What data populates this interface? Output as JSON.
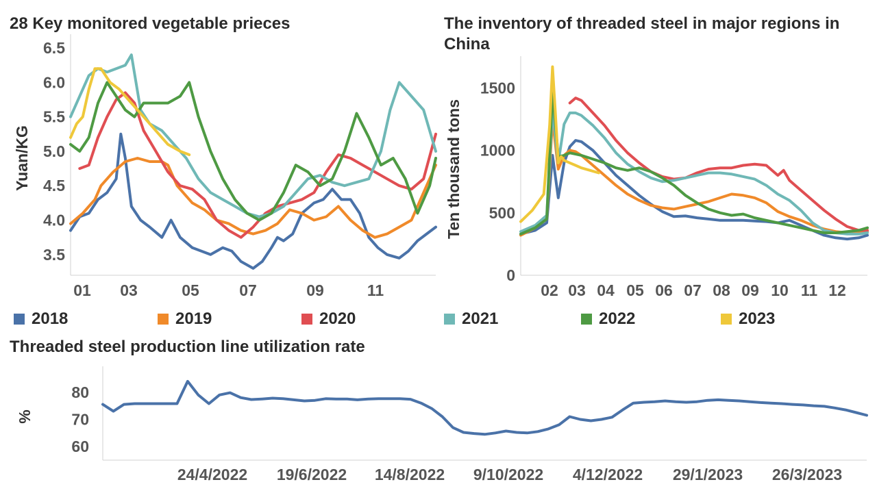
{
  "colors": {
    "2018": "#4a72a8",
    "2019": "#f08a2a",
    "2020": "#e04e52",
    "2021": "#6fb8b6",
    "2022": "#4e9a43",
    "2023": "#efc83a",
    "axis": "#d0d0d0"
  },
  "legend": {
    "items": [
      {
        "label": "2018",
        "color": "#4a72a8"
      },
      {
        "label": "2019",
        "color": "#f08a2a"
      },
      {
        "label": "2020",
        "color": "#e04e52"
      },
      {
        "label": "2021",
        "color": "#6fb8b6"
      },
      {
        "label": "2022",
        "color": "#4e9a43"
      },
      {
        "label": "2023",
        "color": "#efc83a"
      }
    ]
  },
  "chart_data": [
    {
      "type": "line",
      "title": "28 Key monitored vegetable prieces",
      "ylabel": "Yuan/KG",
      "xlabel": "",
      "ylim": [
        3.2,
        6.6
      ],
      "yticks": [
        "3.5",
        "4.0",
        "4.5",
        "5.0",
        "5.5",
        "6.0",
        "6.5"
      ],
      "xticks": [
        "01",
        "03",
        "05",
        "07",
        "09",
        "11"
      ],
      "xlim": [
        0,
        12
      ],
      "series": [
        {
          "name": "2018",
          "x": [
            0,
            0.3,
            0.6,
            0.9,
            1.2,
            1.5,
            1.65,
            1.8,
            2.0,
            2.3,
            2.6,
            3.0,
            3.3,
            3.6,
            4.0,
            4.3,
            4.6,
            5.0,
            5.3,
            5.6,
            6.0,
            6.3,
            6.6,
            6.8,
            7.0,
            7.3,
            7.6,
            8.0,
            8.3,
            8.6,
            8.9,
            9.2,
            9.5,
            9.8,
            10.1,
            10.4,
            10.8,
            11.1,
            11.4,
            11.7,
            12.0
          ],
          "y": [
            3.85,
            4.05,
            4.1,
            4.3,
            4.4,
            4.6,
            5.25,
            4.9,
            4.2,
            4.0,
            3.9,
            3.75,
            4.0,
            3.75,
            3.6,
            3.55,
            3.5,
            3.6,
            3.55,
            3.4,
            3.3,
            3.4,
            3.6,
            3.75,
            3.7,
            3.8,
            4.1,
            4.25,
            4.3,
            4.45,
            4.3,
            4.3,
            4.1,
            3.75,
            3.6,
            3.5,
            3.45,
            3.55,
            3.7,
            3.8,
            3.9
          ]
        },
        {
          "name": "2019",
          "x": [
            0,
            0.4,
            0.8,
            1.0,
            1.4,
            1.8,
            2.2,
            2.6,
            3.0,
            3.2,
            3.5,
            4.0,
            4.4,
            4.8,
            5.2,
            5.6,
            6.0,
            6.4,
            6.8,
            7.2,
            7.6,
            8.0,
            8.4,
            8.8,
            9.2,
            9.6,
            10.0,
            10.4,
            10.8,
            11.2,
            11.6,
            12.0
          ],
          "y": [
            3.95,
            4.1,
            4.3,
            4.5,
            4.7,
            4.85,
            4.9,
            4.85,
            4.85,
            4.8,
            4.5,
            4.25,
            4.15,
            4.0,
            3.95,
            3.85,
            3.8,
            3.85,
            3.95,
            4.15,
            4.1,
            4.0,
            4.05,
            4.2,
            4.0,
            3.85,
            3.75,
            3.8,
            3.9,
            4.0,
            4.4,
            4.8
          ]
        },
        {
          "name": "2020",
          "x": [
            0.3,
            0.6,
            0.9,
            1.2,
            1.5,
            1.8,
            2.1,
            2.4,
            2.8,
            3.2,
            3.6,
            4.0,
            4.4,
            4.8,
            5.2,
            5.6,
            6.0,
            6.4,
            6.8,
            7.2,
            7.6,
            8.0,
            8.4,
            8.8,
            9.2,
            9.6,
            10.0,
            10.4,
            10.8,
            11.2,
            11.6,
            12.0
          ],
          "y": [
            4.75,
            4.8,
            5.2,
            5.5,
            5.75,
            5.85,
            5.7,
            5.3,
            5.0,
            4.7,
            4.5,
            4.45,
            4.3,
            4.0,
            3.85,
            3.75,
            3.9,
            4.1,
            4.2,
            4.25,
            4.3,
            4.4,
            4.7,
            4.95,
            4.9,
            4.8,
            4.7,
            4.6,
            4.5,
            4.45,
            4.6,
            5.25
          ]
        },
        {
          "name": "2021",
          "x": [
            0,
            0.3,
            0.6,
            0.9,
            1.2,
            1.5,
            1.8,
            2.0,
            2.3,
            2.6,
            3.0,
            3.4,
            3.8,
            4.2,
            4.6,
            5.0,
            5.4,
            5.8,
            6.2,
            6.6,
            7.0,
            7.4,
            7.8,
            8.2,
            8.6,
            9.0,
            9.4,
            9.8,
            10.2,
            10.5,
            10.8,
            11.2,
            11.6,
            12.0
          ],
          "y": [
            5.5,
            5.8,
            6.1,
            6.2,
            6.15,
            6.2,
            6.25,
            6.4,
            5.6,
            5.4,
            5.3,
            5.1,
            4.9,
            4.6,
            4.4,
            4.3,
            4.2,
            4.1,
            4.05,
            4.1,
            4.2,
            4.4,
            4.6,
            4.65,
            4.55,
            4.5,
            4.55,
            4.6,
            5.0,
            5.6,
            6.0,
            5.8,
            5.6,
            5.0
          ]
        },
        {
          "name": "2022",
          "x": [
            0,
            0.3,
            0.6,
            0.9,
            1.2,
            1.5,
            1.8,
            2.1,
            2.4,
            2.8,
            3.2,
            3.6,
            3.9,
            4.2,
            4.6,
            5.0,
            5.4,
            5.8,
            6.2,
            6.6,
            7.0,
            7.4,
            7.8,
            8.2,
            8.6,
            9.0,
            9.4,
            9.8,
            10.2,
            10.6,
            11.0,
            11.4,
            11.8,
            12.0
          ],
          "y": [
            5.1,
            5.0,
            5.2,
            5.7,
            6.0,
            5.8,
            5.6,
            5.5,
            5.7,
            5.7,
            5.7,
            5.8,
            6.0,
            5.5,
            5.0,
            4.6,
            4.3,
            4.1,
            4.0,
            4.1,
            4.4,
            4.8,
            4.7,
            4.5,
            4.6,
            5.0,
            5.55,
            5.2,
            4.8,
            4.9,
            4.6,
            4.1,
            4.5,
            4.9
          ]
        },
        {
          "name": "2023",
          "x": [
            0,
            0.2,
            0.4,
            0.6,
            0.8,
            1.0,
            1.3,
            1.6,
            2.0,
            2.4,
            2.8,
            3.2,
            3.6,
            3.9
          ],
          "y": [
            5.2,
            5.4,
            5.5,
            5.9,
            6.2,
            6.2,
            6.0,
            5.9,
            5.7,
            5.5,
            5.3,
            5.1,
            5.0,
            4.95
          ]
        }
      ]
    },
    {
      "type": "line",
      "title": "The inventory of threaded steel in major regions in China",
      "ylabel": "Ten thousand tons",
      "xlabel": "",
      "ylim": [
        0,
        1700
      ],
      "yticks": [
        "0",
        "500",
        "1000",
        "1500"
      ],
      "xticks": [
        "02",
        "03",
        "04",
        "05",
        "06",
        "07",
        "08",
        "09",
        "10",
        "11",
        "12"
      ],
      "xlim": [
        0,
        12
      ],
      "series": [
        {
          "name": "2018",
          "x": [
            0,
            0.5,
            0.9,
            1.1,
            1.3,
            1.5,
            1.7,
            1.9,
            2.1,
            2.5,
            2.9,
            3.3,
            3.7,
            4.1,
            4.5,
            4.9,
            5.3,
            5.7,
            6.1,
            6.5,
            6.9,
            7.3,
            7.7,
            8.1,
            8.5,
            8.9,
            9.3,
            9.7,
            10.1,
            10.5,
            10.9,
            11.3,
            11.7,
            12.0
          ],
          "y": [
            330,
            360,
            420,
            960,
            620,
            900,
            1030,
            1080,
            1070,
            1000,
            900,
            800,
            720,
            640,
            570,
            510,
            470,
            475,
            460,
            450,
            440,
            440,
            440,
            435,
            430,
            420,
            440,
            400,
            360,
            320,
            300,
            290,
            300,
            320
          ]
        },
        {
          "name": "2019",
          "x": [
            0,
            0.5,
            0.9,
            1.1,
            1.3,
            1.5,
            1.7,
            1.9,
            2.1,
            2.5,
            2.9,
            3.3,
            3.7,
            4.1,
            4.5,
            4.9,
            5.3,
            5.7,
            6.1,
            6.5,
            6.9,
            7.3,
            7.7,
            8.1,
            8.5,
            8.9,
            9.3,
            9.7,
            10.1,
            10.5,
            10.9,
            11.3,
            11.7,
            12.0
          ],
          "y": [
            320,
            380,
            450,
            1250,
            850,
            960,
            1000,
            990,
            960,
            880,
            800,
            720,
            650,
            600,
            560,
            540,
            530,
            550,
            570,
            590,
            620,
            650,
            640,
            620,
            580,
            510,
            470,
            440,
            400,
            370,
            350,
            340,
            340,
            350
          ]
        },
        {
          "name": "2020",
          "x": [
            1.7,
            1.9,
            2.1,
            2.5,
            2.9,
            3.3,
            3.7,
            4.1,
            4.5,
            4.9,
            5.3,
            5.7,
            6.1,
            6.5,
            6.9,
            7.3,
            7.7,
            8.1,
            8.5,
            8.9,
            9.1,
            9.3,
            9.5,
            9.7,
            10.1,
            10.5,
            10.9,
            11.3,
            11.7,
            12.0
          ],
          "y": [
            1380,
            1420,
            1400,
            1300,
            1200,
            1080,
            980,
            900,
            830,
            790,
            770,
            780,
            820,
            850,
            860,
            860,
            880,
            890,
            880,
            800,
            840,
            760,
            720,
            680,
            600,
            520,
            450,
            390,
            360,
            360
          ]
        },
        {
          "name": "2021",
          "x": [
            0,
            0.5,
            0.9,
            1.1,
            1.3,
            1.5,
            1.7,
            1.9,
            2.1,
            2.5,
            2.9,
            3.3,
            3.7,
            4.1,
            4.5,
            4.9,
            5.3,
            5.7,
            6.1,
            6.5,
            6.9,
            7.3,
            7.7,
            8.1,
            8.5,
            8.9,
            9.3,
            9.7,
            10.1,
            10.5,
            10.9,
            11.3,
            11.7,
            12.0
          ],
          "y": [
            350,
            400,
            480,
            1330,
            900,
            1210,
            1300,
            1300,
            1280,
            1200,
            1100,
            980,
            890,
            830,
            780,
            750,
            760,
            780,
            800,
            820,
            820,
            810,
            790,
            770,
            720,
            650,
            600,
            520,
            420,
            360,
            340,
            330,
            330,
            340
          ]
        },
        {
          "name": "2022",
          "x": [
            0,
            0.5,
            0.9,
            1.1,
            1.3,
            1.5,
            1.7,
            1.9,
            2.1,
            2.5,
            2.9,
            3.3,
            3.7,
            4.1,
            4.5,
            4.9,
            5.3,
            5.7,
            6.1,
            6.5,
            6.9,
            7.3,
            7.7,
            8.1,
            8.5,
            8.9,
            9.3,
            9.7,
            10.1,
            10.5,
            10.9,
            11.3,
            11.7,
            12.0
          ],
          "y": [
            330,
            380,
            450,
            1480,
            950,
            960,
            980,
            970,
            960,
            930,
            900,
            860,
            840,
            860,
            830,
            780,
            720,
            640,
            580,
            530,
            500,
            480,
            490,
            460,
            440,
            420,
            400,
            380,
            360,
            340,
            340,
            350,
            360,
            380
          ]
        },
        {
          "name": "2023",
          "x": [
            0,
            0.4,
            0.8,
            1.0,
            1.1,
            1.2,
            1.3,
            1.4,
            1.5,
            1.7,
            1.9,
            2.1,
            2.4,
            2.7
          ],
          "y": [
            430,
            520,
            650,
            1200,
            1670,
            1300,
            900,
            950,
            920,
            900,
            880,
            860,
            840,
            820
          ]
        }
      ]
    },
    {
      "type": "line",
      "title": "Threaded steel production line utilization rate",
      "ylabel": "%",
      "xlabel": "",
      "ylim": [
        55,
        87
      ],
      "yticks": [
        "60",
        "70",
        "80"
      ],
      "xticks": [
        "24/4/2022",
        "19/6/2022",
        "14/8/2022",
        "9/10/2022",
        "4/12/2022",
        "29/1/2023",
        "26/3/2023"
      ],
      "series": [
        {
          "name": "Threaded steel production line utilization rate",
          "x": [
            0,
            1,
            2,
            3,
            4,
            5,
            6,
            7,
            8,
            9,
            10,
            11,
            12,
            13,
            14,
            15,
            16,
            17,
            18,
            19,
            20,
            21,
            22,
            23,
            24,
            25,
            26,
            27,
            28,
            29,
            30,
            31,
            32,
            33,
            34,
            35,
            36,
            37,
            38,
            39,
            40,
            41,
            42,
            43,
            44,
            45,
            46,
            47,
            48,
            49,
            50,
            51,
            52,
            53,
            54,
            55,
            56,
            57,
            58,
            59,
            60,
            61,
            62,
            63,
            64,
            65,
            66,
            67,
            68,
            69,
            70,
            71,
            72
          ],
          "y": [
            75.5,
            73,
            75.5,
            75.8,
            75.8,
            75.8,
            75.8,
            75.8,
            84,
            79,
            75.8,
            79,
            79.8,
            78,
            77.3,
            77.5,
            77.8,
            77.6,
            77.2,
            76.8,
            77,
            77.6,
            77.5,
            77.5,
            77.2,
            77.5,
            77.6,
            77.6,
            77.6,
            77.4,
            76,
            74,
            71,
            67,
            65.2,
            64.8,
            64.5,
            65,
            65.7,
            65.2,
            65,
            65.5,
            66.5,
            68,
            71,
            70,
            69.5,
            70,
            70.8,
            73.5,
            76,
            76.3,
            76.5,
            76.8,
            76.5,
            76.3,
            76.5,
            77,
            77.2,
            77,
            76.8,
            76.5,
            76.2,
            76,
            75.8,
            75.5,
            75.3,
            75,
            74.8,
            74.2,
            73.5,
            72.5,
            71.5
          ]
        }
      ]
    }
  ]
}
